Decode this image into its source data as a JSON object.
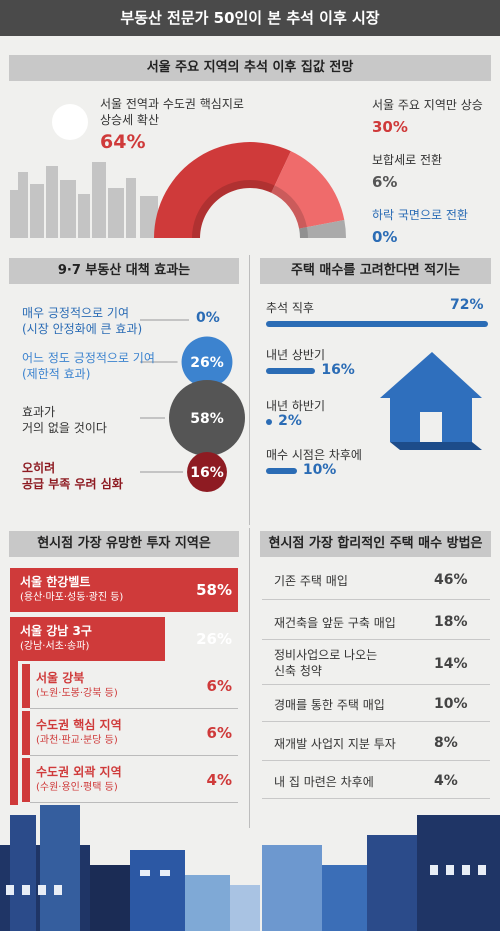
{
  "title": "부동산 전문가 50인이 본 추석 이후 시장",
  "sections": {
    "outlook": "서울 주요 지역의 추석 이후 집값 전망",
    "policy": "9·7 부동산 대책 효과는",
    "timing": "주택 매수를 고려한다면 적기는",
    "region": "현시점 가장 유망한 투자 지역은",
    "method": "현시점 가장 합리적인 주택 매수 방법은"
  },
  "chart_data": [
    {
      "type": "pie",
      "title": "서울 주요 지역의 추석 이후 집값 전망",
      "categories": [
        "서울 전역과 수도권 핵심지로 상승세 확산",
        "서울 주요 지역만 상승",
        "보합세로 전환",
        "하락 국면으로 전환"
      ],
      "values": [
        64,
        30,
        6,
        0
      ],
      "labels": [
        "64%",
        "30%",
        "6%",
        "0%"
      ],
      "colors": [
        "#cf3a3a",
        "#ef6b6b",
        "#aaaaaa",
        "#2b6cb5"
      ]
    },
    {
      "type": "scatter",
      "title": "9·7 부동산 대책 효과는",
      "categories": [
        "매우 긍정적으로 기여 (시장 안정화에 큰 효과)",
        "어느 정도 긍정적으로 기여 (제한적 효과)",
        "효과가 거의 없을 것이다",
        "오히려 공급 부족 우려 심화"
      ],
      "values": [
        0,
        26,
        58,
        16
      ],
      "labels": [
        "0%",
        "26%",
        "58%",
        "16%"
      ],
      "colors": [
        "#2b6cb5",
        "#3c83cf",
        "#555555",
        "#8e1b22"
      ]
    },
    {
      "type": "bar",
      "title": "주택 매수를 고려한다면 적기는",
      "categories": [
        "추석 직후",
        "내년 상반기",
        "내년 하반기",
        "매수 시점은 차후에"
      ],
      "values": [
        72,
        16,
        2,
        10
      ],
      "labels": [
        "72%",
        "16%",
        "2%",
        "10%"
      ],
      "color": "#2b6cb5"
    },
    {
      "type": "bar",
      "title": "현시점 가장 유망한 투자 지역은",
      "categories": [
        "서울 한강벨트 (용산·마포·성동·광진 등)",
        "서울 강남 3구 (강남·서초·송파)",
        "서울 강북 (노원·도봉·강북 등)",
        "수도권 핵심 지역 (과천·판교·분당 등)",
        "수도권 외곽 지역 (수원·용인·평택 등)"
      ],
      "values": [
        58,
        26,
        6,
        6,
        4
      ],
      "labels": [
        "58%",
        "26%",
        "6%",
        "6%",
        "4%"
      ],
      "color": "#cf3a3a"
    },
    {
      "type": "table",
      "title": "현시점 가장 합리적인 주택 매수 방법은",
      "categories": [
        "기존 주택 매입",
        "재건축을 앞둔 구축 매입",
        "정비사업으로 나오는 신축 청약",
        "경매를 통한 주택 매입",
        "재개발 사업지 지분 투자",
        "내 집 마련은 차후에"
      ],
      "values": [
        46,
        18,
        14,
        10,
        8,
        4
      ],
      "labels": [
        "46%",
        "18%",
        "14%",
        "10%",
        "8%",
        "4%"
      ]
    }
  ],
  "text": {
    "outlook": {
      "a1": "서울 전역과 수도권 핵심지로",
      "a2": "상승세 확산",
      "b": "서울 주요 지역만 상승",
      "c": "보합세로 전환",
      "d": "하락 국면으로 전환"
    },
    "policy": [
      [
        "매우 긍정적으로 기여",
        "(시장 안정화에 큰 효과)"
      ],
      [
        "어느 정도 긍정적으로 기여",
        "(제한적 효과)"
      ],
      [
        "효과가",
        "거의 없을 것이다"
      ],
      [
        "오히려",
        "공급 부족 우려 심화"
      ]
    ],
    "region": [
      [
        "서울 한강벨트",
        "(용산·마포·성동·광진 등)"
      ],
      [
        "서울 강남 3구",
        "(강남·서초·송파)"
      ],
      [
        "서울 강북",
        "(노원·도봉·강북 등)"
      ],
      [
        "수도권 핵심 지역",
        "(과천·판교·분당 등)"
      ],
      [
        "수도권 외곽 지역",
        "(수원·용인·평택 등)"
      ]
    ],
    "method": [
      [
        "기존 주택 매입"
      ],
      [
        "재건축을 앞둔 구축 매입"
      ],
      [
        "정비사업으로 나오는",
        "신축 청약"
      ],
      [
        "경매를 통한 주택 매입"
      ],
      [
        "재개발 사업지 지분 투자"
      ],
      [
        "내 집 마련은 차후에"
      ]
    ]
  }
}
